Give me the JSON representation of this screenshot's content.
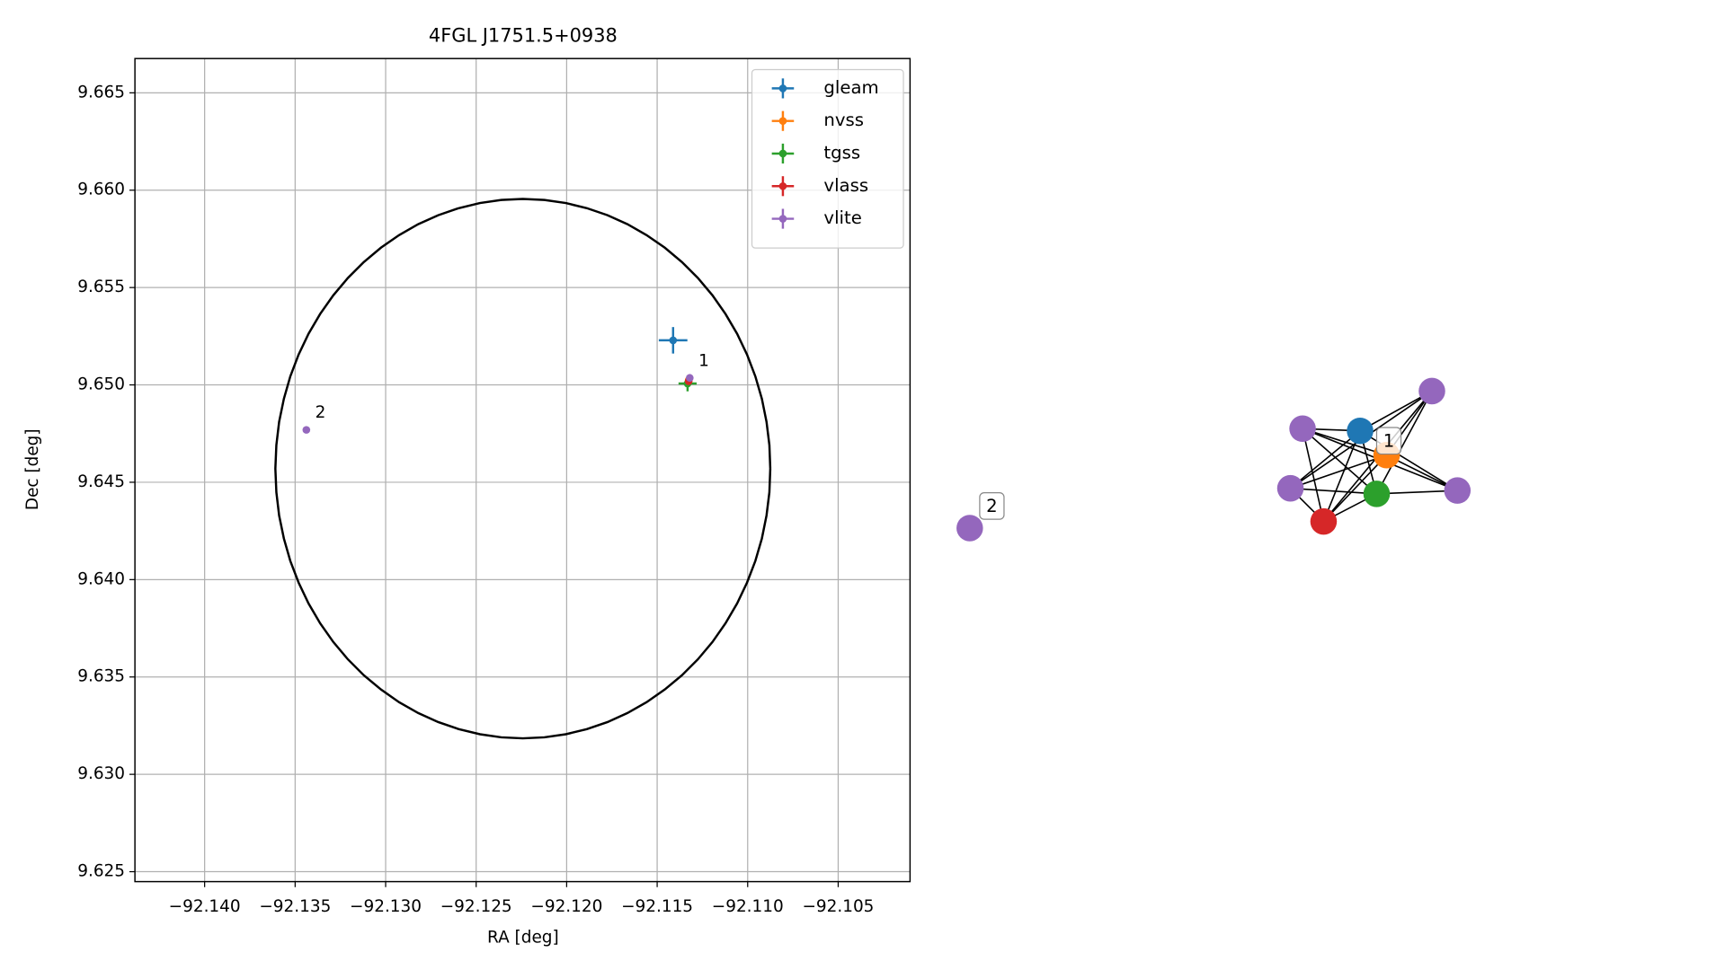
{
  "chart_data": {
    "type": "scatter",
    "title": "4FGL J1751.5+0938",
    "x_label": "RA [deg]",
    "y_label": "Dec [deg]",
    "xlim": [
      -92.14385,
      -92.10103
    ],
    "ylim": [
      9.62449,
      9.66676
    ],
    "xticks": [
      {
        "value": -92.14,
        "label": "−92.140"
      },
      {
        "value": -92.135,
        "label": "−92.135"
      },
      {
        "value": -92.13,
        "label": "−92.130"
      },
      {
        "value": -92.125,
        "label": "−92.125"
      },
      {
        "value": -92.12,
        "label": "−92.120"
      },
      {
        "value": -92.115,
        "label": "−92.115"
      },
      {
        "value": -92.11,
        "label": "−92.110"
      },
      {
        "value": -92.105,
        "label": "−92.105"
      }
    ],
    "yticks": [
      9.625,
      {
        "value": 9.63,
        "label": "9.630"
      },
      9.635,
      {
        "value": 9.64,
        "label": "9.640"
      },
      9.645,
      {
        "value": 9.65,
        "label": "9.650"
      },
      9.655,
      {
        "value": 9.66,
        "label": "9.660"
      },
      9.665
    ],
    "grid": true,
    "legend": "upper right",
    "series": [
      {
        "name": "gleam",
        "color": "#1f77b4",
        "x": [
          -92.11412
        ],
        "y": [
          9.65229
        ],
        "xerr": [
          0.00079
        ],
        "yerr": [
          0.00068
        ]
      },
      {
        "name": "nvss",
        "color": "#ff7f0e",
        "x": [
          -92.11326
        ],
        "y": [
          9.65024
        ]
      },
      {
        "name": "tgss",
        "color": "#2ca02c",
        "x": [
          -92.11332
        ],
        "y": [
          9.65007
        ],
        "xerr": [
          0.0005
        ],
        "yerr": [
          0.0004
        ]
      },
      {
        "name": "vlass",
        "color": "#d62728",
        "x": [
          -92.11326
        ],
        "y": [
          9.65019
        ]
      },
      {
        "name": "vlite",
        "color": "#9467bd",
        "x": [
          -92.1132,
          -92.13438
        ],
        "y": [
          9.65036,
          9.64769
        ]
      }
    ],
    "ellipse": {
      "color": "#000000",
      "center": [
        -92.12242,
        9.6457
      ],
      "semi_axes": [
        0.01367,
        0.01385
      ]
    },
    "annotations": [
      {
        "text": "1",
        "x": -92.1132,
        "y": 9.65036
      },
      {
        "text": "2",
        "x": -92.13438,
        "y": 9.64769
      }
    ]
  },
  "network": {
    "labels": [
      "1",
      "2"
    ]
  }
}
